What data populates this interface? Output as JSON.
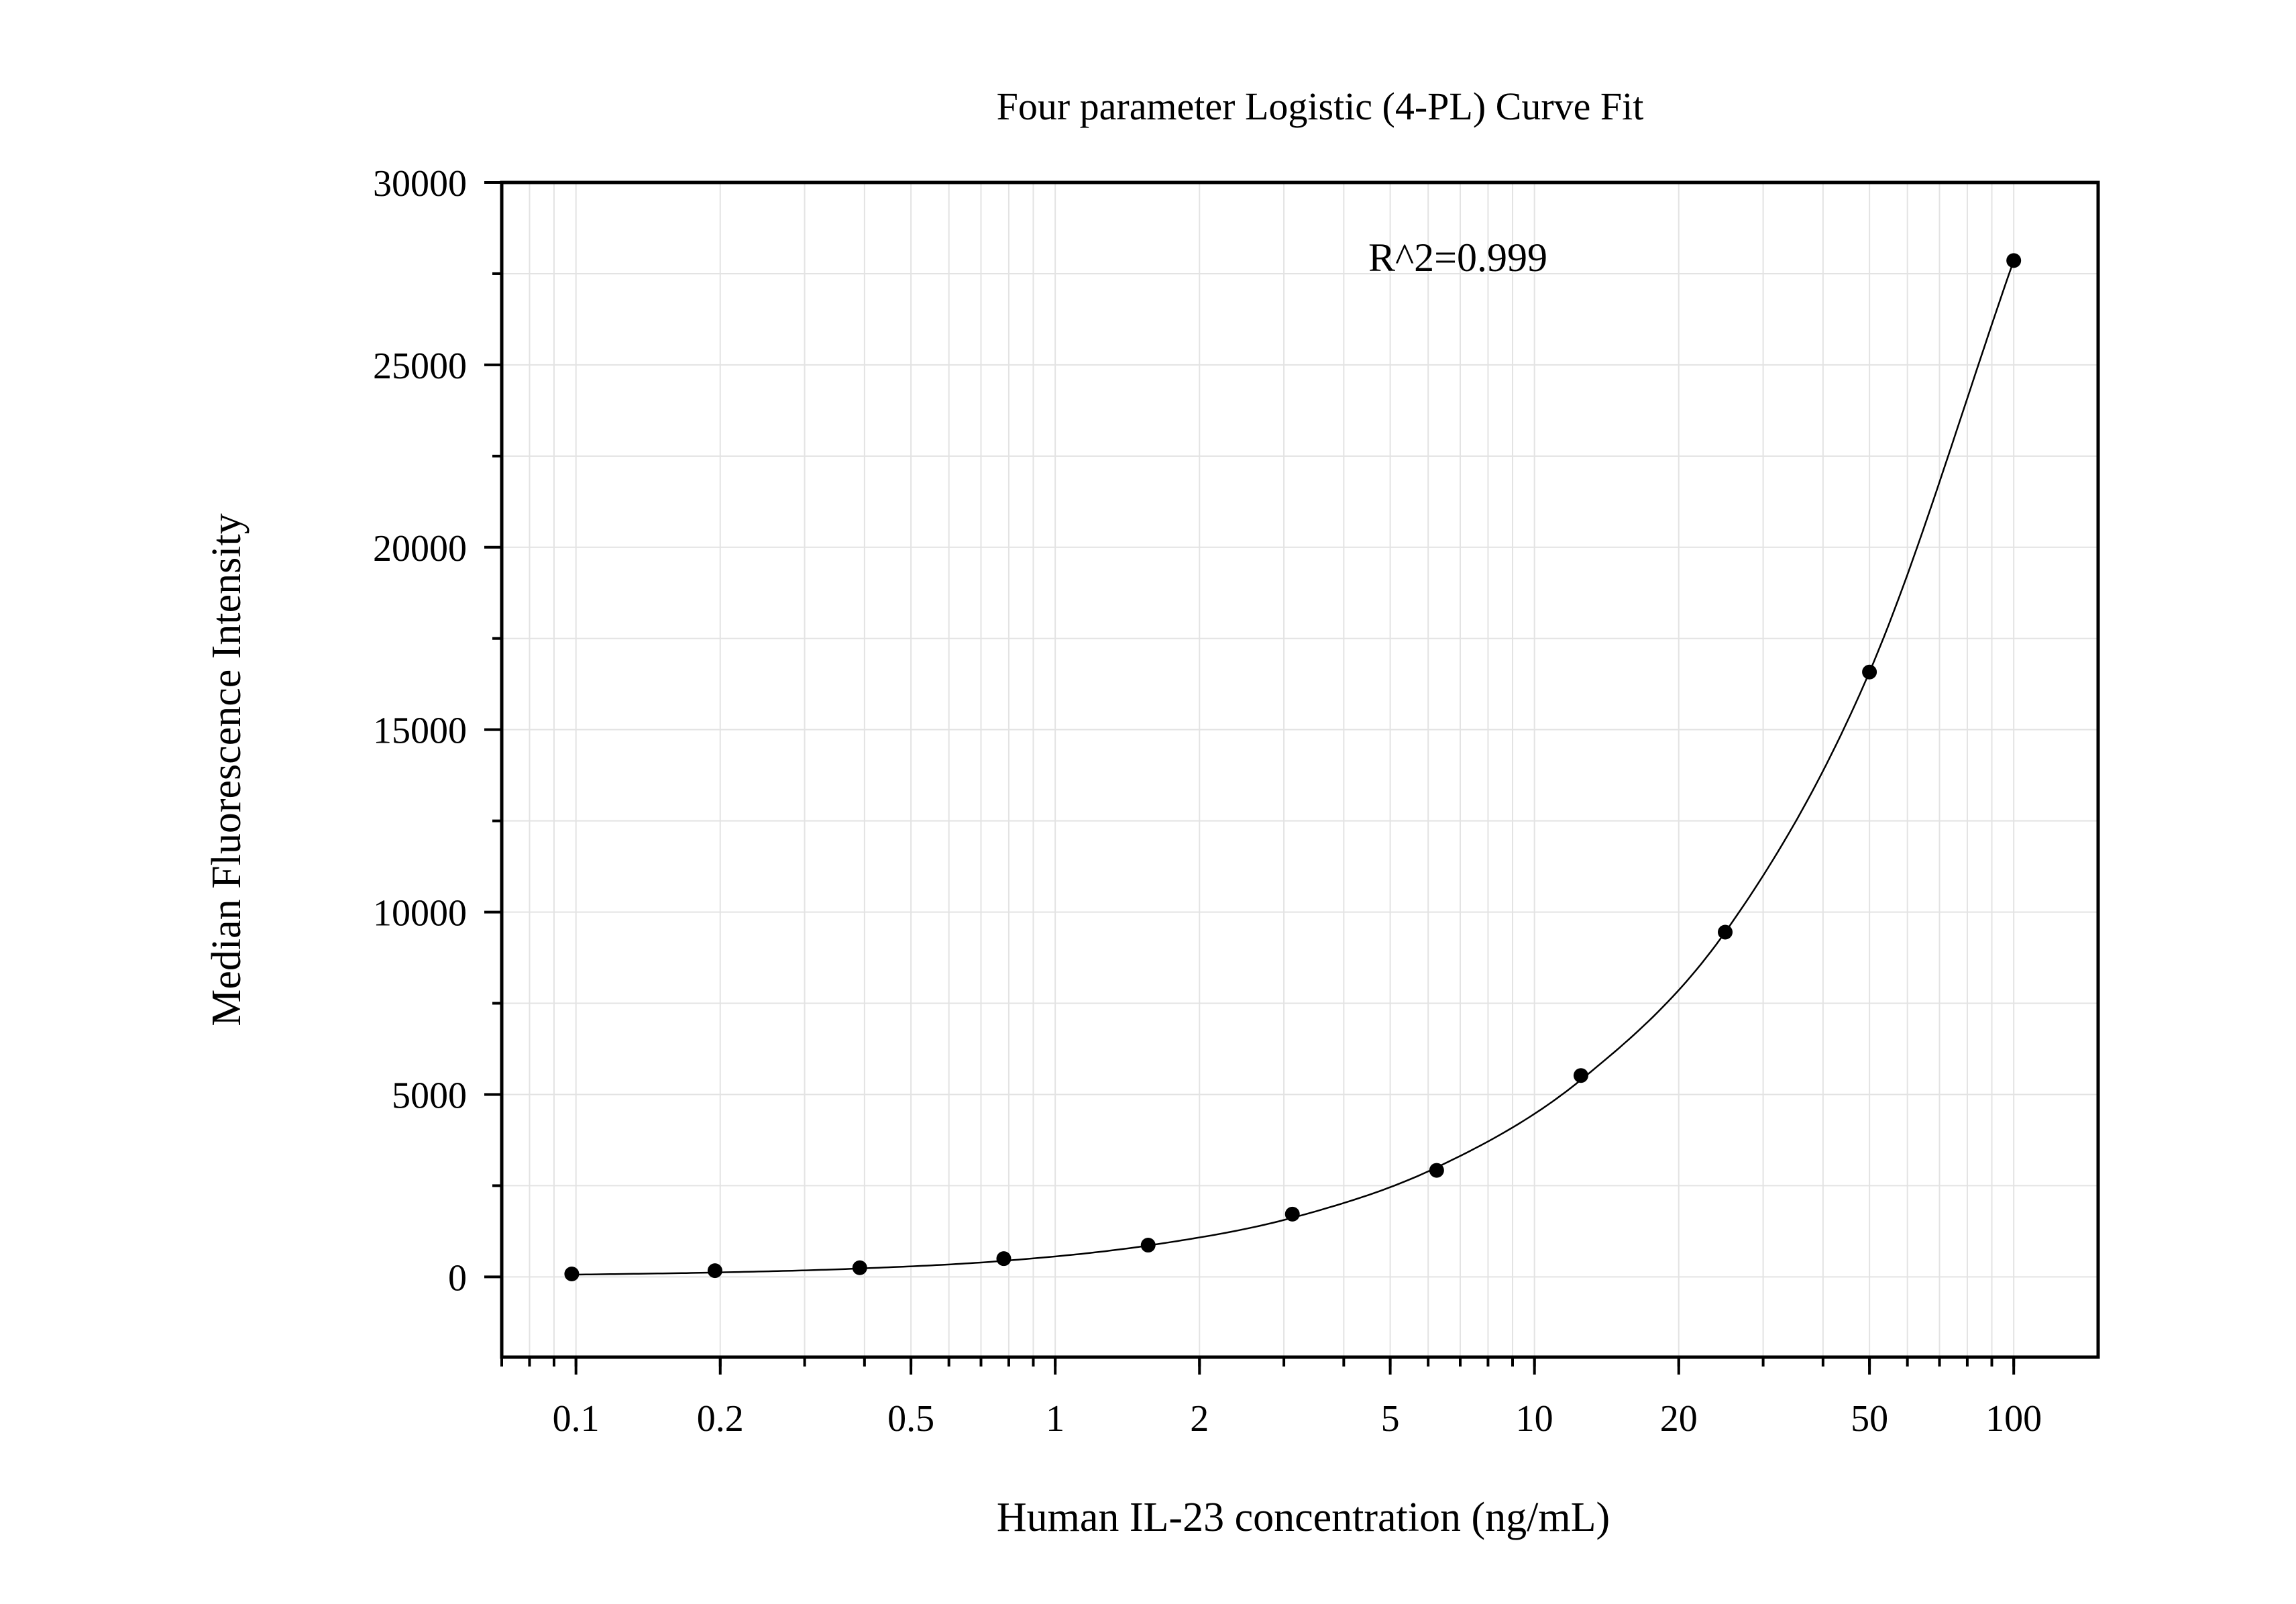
{
  "chart_data": {
    "type": "scatter",
    "title": "Four parameter Logistic (4-PL) Curve Fit",
    "xlabel": "Human IL-23 concentration (ng/mL)",
    "ylabel": "Median Fluorescence Intensity",
    "x_scale": "log",
    "xlim": [
      0.07,
      150
    ],
    "ylim": [
      -2200,
      30000
    ],
    "x_ticks": [
      0.1,
      0.2,
      0.5,
      1,
      2,
      5,
      10,
      20,
      50,
      100
    ],
    "x_tick_labels": [
      "0.1",
      "0.2",
      "0.5",
      "1",
      "2",
      "5",
      "10",
      "20",
      "50",
      "100"
    ],
    "y_ticks": [
      0,
      5000,
      10000,
      15000,
      20000,
      25000,
      30000
    ],
    "y_tick_labels": [
      "0",
      "5000",
      "10000",
      "15000",
      "20000",
      "25000",
      "30000"
    ],
    "grid": true,
    "annotation": "R^2=0.999",
    "series": [
      {
        "points": [
          {
            "x": 0.098,
            "y": 80
          },
          {
            "x": 0.195,
            "y": 170
          },
          {
            "x": 0.391,
            "y": 250
          },
          {
            "x": 0.781,
            "y": 500
          },
          {
            "x": 1.563,
            "y": 870
          },
          {
            "x": 3.125,
            "y": 1720
          },
          {
            "x": 6.25,
            "y": 2920
          },
          {
            "x": 12.5,
            "y": 5520
          },
          {
            "x": 25,
            "y": 9450
          },
          {
            "x": 50,
            "y": 16580
          },
          {
            "x": 100,
            "y": 27860
          }
        ]
      }
    ],
    "fit_curve": [
      {
        "x": 0.098,
        "y": 60
      },
      {
        "x": 0.195,
        "y": 120
      },
      {
        "x": 0.391,
        "y": 230
      },
      {
        "x": 0.781,
        "y": 440
      },
      {
        "x": 1.563,
        "y": 860
      },
      {
        "x": 3.125,
        "y": 1620
      },
      {
        "x": 6.25,
        "y": 3000
      },
      {
        "x": 12.5,
        "y": 5400
      },
      {
        "x": 25,
        "y": 9450
      },
      {
        "x": 50,
        "y": 16580
      },
      {
        "x": 100,
        "y": 27860
      }
    ],
    "colors": {
      "marker": "#000000",
      "line": "#000000",
      "grid": "#e3e3e3",
      "axis": "#000000"
    }
  }
}
